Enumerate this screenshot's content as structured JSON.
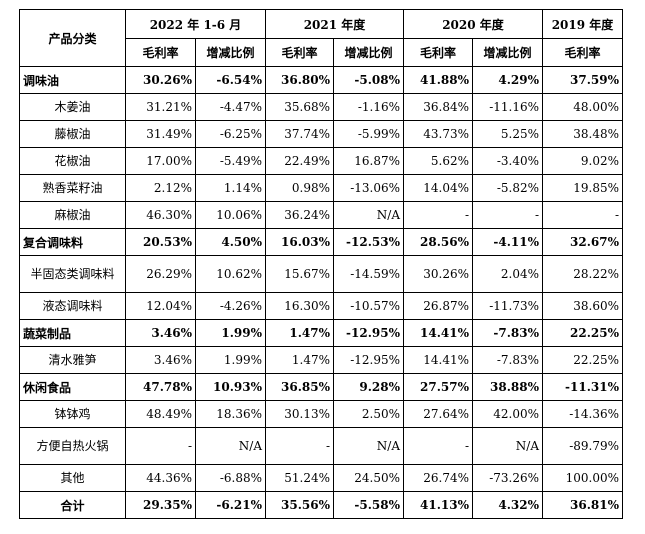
{
  "header": {
    "category_label": "产品分类",
    "periods": [
      "2022 年 1-6 月",
      "2021 年度",
      "2020 年度",
      "2019 年度"
    ],
    "gross_margin_label": "毛利率",
    "change_label": "增减比例"
  },
  "rows": [
    {
      "name": "调味油",
      "kind": "cat",
      "values": [
        "30.26%",
        "-6.54%",
        "36.80%",
        "-5.08%",
        "41.88%",
        "4.29%",
        "37.59%"
      ]
    },
    {
      "name": "木姜油",
      "kind": "sub",
      "values": [
        "31.21%",
        "-4.47%",
        "35.68%",
        "-1.16%",
        "36.84%",
        "-11.16%",
        "48.00%"
      ]
    },
    {
      "name": "藤椒油",
      "kind": "sub",
      "values": [
        "31.49%",
        "-6.25%",
        "37.74%",
        "-5.99%",
        "43.73%",
        "5.25%",
        "38.48%"
      ]
    },
    {
      "name": "花椒油",
      "kind": "sub",
      "values": [
        "17.00%",
        "-5.49%",
        "22.49%",
        "16.87%",
        "5.62%",
        "-3.40%",
        "9.02%"
      ]
    },
    {
      "name": "熟香菜籽油",
      "kind": "sub",
      "values": [
        "2.12%",
        "1.14%",
        "0.98%",
        "-13.06%",
        "14.04%",
        "-5.82%",
        "19.85%"
      ]
    },
    {
      "name": "麻椒油",
      "kind": "sub",
      "values": [
        "46.30%",
        "10.06%",
        "36.24%",
        "N/A",
        "-",
        "-",
        "-"
      ]
    },
    {
      "name": "复合调味料",
      "kind": "cat",
      "values": [
        "20.53%",
        "4.50%",
        "16.03%",
        "-12.53%",
        "28.56%",
        "-4.11%",
        "32.67%"
      ]
    },
    {
      "name": "半固态类调味料",
      "kind": "sub tall",
      "values": [
        "26.29%",
        "10.62%",
        "15.67%",
        "-14.59%",
        "30.26%",
        "2.04%",
        "28.22%"
      ]
    },
    {
      "name": "液态调味料",
      "kind": "sub",
      "values": [
        "12.04%",
        "-4.26%",
        "16.30%",
        "-10.57%",
        "26.87%",
        "-11.73%",
        "38.60%"
      ]
    },
    {
      "name": "蔬菜制品",
      "kind": "cat",
      "values": [
        "3.46%",
        "1.99%",
        "1.47%",
        "-12.95%",
        "14.41%",
        "-7.83%",
        "22.25%"
      ]
    },
    {
      "name": "清水雅笋",
      "kind": "sub",
      "values": [
        "3.46%",
        "1.99%",
        "1.47%",
        "-12.95%",
        "14.41%",
        "-7.83%",
        "22.25%"
      ]
    },
    {
      "name": "休闲食品",
      "kind": "cat",
      "values": [
        "47.78%",
        "10.93%",
        "36.85%",
        "9.28%",
        "27.57%",
        "38.88%",
        "-11.31%"
      ]
    },
    {
      "name": "钵钵鸡",
      "kind": "sub",
      "values": [
        "48.49%",
        "18.36%",
        "30.13%",
        "2.50%",
        "27.64%",
        "42.00%",
        "-14.36%"
      ]
    },
    {
      "name": "方便自热火锅",
      "kind": "sub tall",
      "values": [
        "-",
        "N/A",
        "-",
        "N/A",
        "-",
        "N/A",
        "-89.79%"
      ]
    },
    {
      "name": "其他",
      "kind": "sub",
      "values": [
        "44.36%",
        "-6.88%",
        "51.24%",
        "24.50%",
        "26.74%",
        "-73.26%",
        "100.00%"
      ]
    },
    {
      "name": "合计",
      "kind": "total",
      "values": [
        "29.35%",
        "-6.21%",
        "35.56%",
        "-5.58%",
        "41.13%",
        "4.32%",
        "36.81%"
      ]
    }
  ]
}
